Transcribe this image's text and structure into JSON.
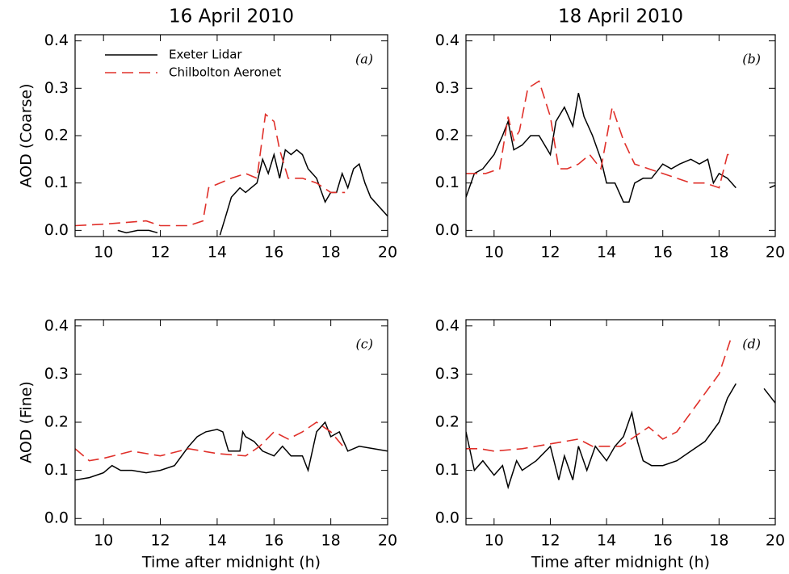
{
  "chart_data": [
    {
      "type": "line",
      "title": "16 April 2010",
      "ylabel": "AOD (Coarse)",
      "label": "(a)",
      "legend": "upper-left",
      "xlim": [
        9,
        20
      ],
      "xticks": [
        10,
        12,
        14,
        16,
        18,
        20
      ],
      "ylim": [
        -0.013,
        0.413
      ],
      "yticks": [
        {
          "value": 0,
          "label": "0.0"
        },
        0.1,
        0.2,
        0.3,
        0.4
      ],
      "series": [
        {
          "name": "Exeter Lidar",
          "color": "#000000",
          "dash": false,
          "x": [
            10.5,
            10.8,
            11.2,
            11.6,
            11.9,
            13.0,
            14.1,
            14.3,
            14.5,
            14.8,
            15.0,
            15.2,
            15.4,
            15.6,
            15.8,
            16.0,
            16.2,
            16.4,
            16.6,
            16.8,
            17.0,
            17.2,
            17.5,
            17.8,
            18.0,
            18.2,
            18.4,
            18.6,
            18.8,
            19.0,
            19.2,
            19.4,
            19.7,
            20.0
          ],
          "values": [
            0.0,
            -0.005,
            0.0,
            0.0,
            -0.005,
            null,
            -0.01,
            0.03,
            0.07,
            0.09,
            0.08,
            0.09,
            0.1,
            0.15,
            0.12,
            0.16,
            0.11,
            0.17,
            0.16,
            0.17,
            0.16,
            0.13,
            0.11,
            0.06,
            0.08,
            0.08,
            0.12,
            0.09,
            0.13,
            0.14,
            0.1,
            0.07,
            0.05,
            0.03
          ]
        },
        {
          "name": "Chilbolton Aeronet",
          "color": "#e0302a",
          "dash": true,
          "x": [
            9,
            10,
            11.5,
            12,
            13,
            13.5,
            13.7,
            14.5,
            15,
            15.4,
            15.7,
            16,
            16.2,
            16.5,
            17,
            17.5,
            18,
            18.5
          ],
          "values": [
            0.01,
            0.013,
            0.02,
            0.01,
            0.01,
            0.02,
            0.09,
            0.11,
            0.12,
            0.11,
            0.245,
            0.23,
            0.17,
            0.11,
            0.11,
            0.1,
            0.08,
            0.08
          ]
        }
      ]
    },
    {
      "type": "line",
      "title": "18 April 2010",
      "label": "(b)",
      "xlim": [
        9,
        20
      ],
      "xticks": [
        10,
        12,
        14,
        16,
        18,
        20
      ],
      "ylim": [
        -0.013,
        0.413
      ],
      "yticks": [
        {
          "value": 0,
          "label": "0.0"
        },
        0.1,
        0.2,
        0.3,
        0.4
      ],
      "series": [
        {
          "color": "#000000",
          "dash": false,
          "x": [
            9,
            9.3,
            9.6,
            10,
            10.3,
            10.5,
            10.7,
            11,
            11.3,
            11.6,
            12,
            12.2,
            12.5,
            12.8,
            13,
            13.2,
            13.5,
            13.8,
            14,
            14.3,
            14.6,
            14.8,
            15,
            15.3,
            15.6,
            16,
            16.3,
            16.6,
            17,
            17.3,
            17.6,
            17.8,
            18,
            18.3,
            18.6,
            19.2,
            19.8,
            20
          ],
          "values": [
            0.07,
            0.12,
            0.13,
            0.16,
            0.2,
            0.23,
            0.17,
            0.18,
            0.2,
            0.2,
            0.16,
            0.23,
            0.26,
            0.22,
            0.29,
            0.24,
            0.2,
            0.15,
            0.1,
            0.1,
            0.06,
            0.06,
            0.1,
            0.11,
            0.11,
            0.14,
            0.13,
            0.14,
            0.15,
            0.14,
            0.15,
            0.1,
            0.12,
            0.11,
            0.09,
            null,
            0.09,
            0.095
          ]
        },
        {
          "color": "#e0302a",
          "dash": true,
          "x": [
            9,
            9.7,
            10.2,
            10.5,
            10.7,
            10.9,
            11.2,
            11.6,
            12,
            12.3,
            12.6,
            13,
            13.4,
            13.8,
            14.2,
            14.6,
            15,
            15.5,
            16,
            16.5,
            17,
            17.5,
            18,
            18.3,
            18.5
          ],
          "values": [
            0.12,
            0.12,
            0.13,
            0.24,
            0.19,
            0.21,
            0.3,
            0.315,
            0.24,
            0.13,
            0.13,
            0.14,
            0.16,
            0.13,
            0.26,
            0.19,
            0.14,
            0.13,
            0.12,
            0.11,
            0.1,
            0.1,
            0.09,
            0.16,
            0.16
          ]
        }
      ]
    },
    {
      "type": "line",
      "ylabel": "AOD (Fine)",
      "xlabel": "Time after midnight (h)",
      "label": "(c)",
      "xlim": [
        9,
        20
      ],
      "xticks": [
        10,
        12,
        14,
        16,
        18,
        20
      ],
      "ylim": [
        -0.013,
        0.413
      ],
      "yticks": [
        {
          "value": 0,
          "label": "0.0"
        },
        0.1,
        0.2,
        0.3,
        0.4
      ],
      "series": [
        {
          "color": "#000000",
          "dash": false,
          "x": [
            9,
            9.5,
            10,
            10.3,
            10.6,
            11,
            11.5,
            12,
            12.5,
            13,
            13.3,
            13.6,
            14,
            14.2,
            14.4,
            14.5,
            14.8,
            14.9,
            15,
            15.3,
            15.6,
            16,
            16.3,
            16.6,
            17,
            17.2,
            17.5,
            17.8,
            18,
            18.3,
            18.6,
            19,
            19.5,
            20
          ],
          "values": [
            0.08,
            0.085,
            0.095,
            0.11,
            0.1,
            0.1,
            0.095,
            0.1,
            0.11,
            0.15,
            0.17,
            0.18,
            0.185,
            0.18,
            0.14,
            0.14,
            0.14,
            0.18,
            0.17,
            0.16,
            0.14,
            0.13,
            0.15,
            0.13,
            0.13,
            0.1,
            0.18,
            0.2,
            0.17,
            0.18,
            0.14,
            0.15,
            0.145,
            0.14
          ]
        },
        {
          "color": "#e0302a",
          "dash": true,
          "x": [
            9,
            9.5,
            10,
            11,
            12,
            13,
            13.5,
            14,
            15,
            15.5,
            16,
            16.5,
            17,
            17.5,
            18,
            18.5
          ],
          "values": [
            0.145,
            0.12,
            0.125,
            0.14,
            0.13,
            0.145,
            0.14,
            0.135,
            0.13,
            0.15,
            0.18,
            0.165,
            0.18,
            0.2,
            0.18,
            0.145
          ]
        }
      ]
    },
    {
      "type": "line",
      "xlabel": "Time after midnight (h)",
      "label": "(d)",
      "xlim": [
        9,
        20
      ],
      "xticks": [
        10,
        12,
        14,
        16,
        18,
        20
      ],
      "ylim": [
        -0.013,
        0.413
      ],
      "yticks": [
        {
          "value": 0,
          "label": "0.0"
        },
        0.1,
        0.2,
        0.3,
        0.4
      ],
      "series": [
        {
          "color": "#000000",
          "dash": false,
          "x": [
            9,
            9.3,
            9.6,
            10,
            10.3,
            10.5,
            10.8,
            11,
            11.5,
            12,
            12.3,
            12.5,
            12.8,
            13,
            13.3,
            13.6,
            14,
            14.3,
            14.6,
            14.9,
            15.1,
            15.3,
            15.6,
            16,
            16.5,
            17,
            17.5,
            18,
            18.3,
            18.6,
            19.2,
            19.6,
            20
          ],
          "values": [
            0.18,
            0.1,
            0.12,
            0.09,
            0.11,
            0.065,
            0.12,
            0.1,
            0.12,
            0.15,
            0.08,
            0.13,
            0.08,
            0.15,
            0.1,
            0.15,
            0.12,
            0.15,
            0.17,
            0.22,
            0.16,
            0.12,
            0.11,
            0.11,
            0.12,
            0.14,
            0.16,
            0.2,
            0.25,
            0.28,
            null,
            0.27,
            0.24
          ]
        },
        {
          "color": "#e0302a",
          "dash": true,
          "x": [
            9,
            9.5,
            10,
            11,
            12,
            13,
            13.5,
            14,
            14.5,
            15,
            15.5,
            16,
            16.5,
            17,
            17.5,
            18,
            18.4
          ],
          "values": [
            0.145,
            0.145,
            0.14,
            0.145,
            0.155,
            0.165,
            0.15,
            0.15,
            0.15,
            0.17,
            0.19,
            0.165,
            0.18,
            0.22,
            0.26,
            0.3,
            0.37
          ]
        }
      ]
    }
  ]
}
